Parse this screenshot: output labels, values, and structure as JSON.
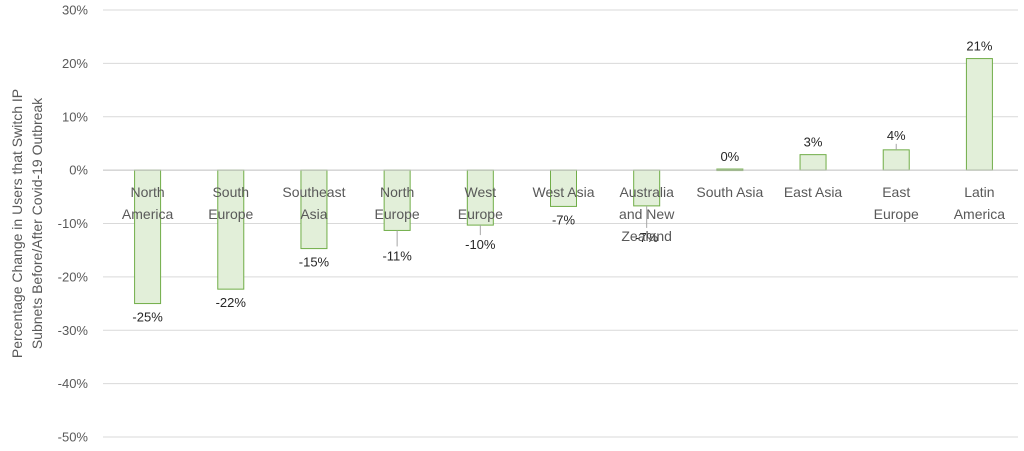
{
  "chart_data": {
    "type": "bar",
    "ylabel_lines": [
      "Percentage Change in Users that Switch IP",
      "Subnets Before/After Covid-19 Outbreak"
    ],
    "ylim": [
      -50,
      30
    ],
    "yticks": [
      30,
      20,
      10,
      0,
      -10,
      -20,
      -30,
      -40,
      -50
    ],
    "ytick_labels": [
      "30%",
      "20%",
      "10%",
      "0%",
      "-10%",
      "-20%",
      "-30%",
      "-40%",
      "-50%"
    ],
    "grid": true,
    "categories": [
      [
        "North",
        "America"
      ],
      [
        "South",
        "Europe"
      ],
      [
        "Southeast",
        "Asia"
      ],
      [
        "North",
        "Europe"
      ],
      [
        "West",
        "Europe"
      ],
      [
        "West Asia"
      ],
      [
        "Australia",
        "and New",
        "Zealand"
      ],
      [
        "South Asia"
      ],
      [
        "East Asia"
      ],
      [
        "East",
        "Europe"
      ],
      [
        "Latin",
        "America"
      ]
    ],
    "values": [
      -25,
      -22.3,
      -14.7,
      -11.3,
      -10.3,
      -6.8,
      -6.7,
      0.2,
      2.9,
      3.8,
      20.9
    ],
    "data_labels": [
      "-25%",
      "-22%",
      "-15%",
      "-11%",
      "-10%",
      "-7%",
      "-7%",
      "0%",
      "3%",
      "4%",
      "21%"
    ],
    "colors": {
      "bar_fill": "#e2efd9",
      "bar_stroke": "#70ad47",
      "grid": "#d9d9d9",
      "axis": "#bfbfbf"
    }
  }
}
